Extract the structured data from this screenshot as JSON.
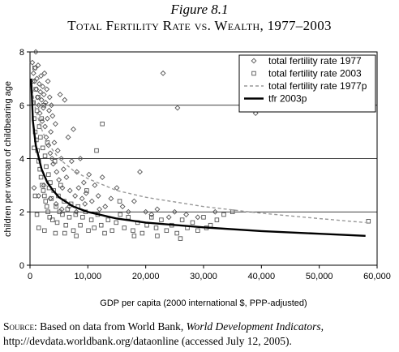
{
  "figure": {
    "label": "Figure 8.1",
    "title": "Total Fertility Rate vs. Wealth, 1977–2003"
  },
  "source": {
    "prefix": "Source:",
    "text1": " Based on data from World Bank, ",
    "italic": "World Development Indicators,",
    "text2": " http://devdata.worldbank.org/dataonline (accessed July 12, 2005)."
  },
  "chart_data": {
    "type": "scatter",
    "xlabel": "GDP per capita (2000 international $, PPP-adjusted)",
    "ylabel": "children per woman of childbearing age",
    "xlim": [
      0,
      60000
    ],
    "ylim": [
      0,
      8
    ],
    "xticks": [
      0,
      10000,
      20000,
      30000,
      40000,
      50000,
      60000
    ],
    "xtick_labels": [
      "0",
      "10,000",
      "20,000",
      "30,000",
      "40,000",
      "50,000",
      "60,000"
    ],
    "yticks": [
      0,
      2,
      4,
      6,
      8
    ],
    "ytick_labels": [
      "0",
      "2",
      "4",
      "6",
      "8"
    ],
    "grid": "horizontal",
    "legend_position": "top-right",
    "series": [
      {
        "name": "total fertility rate 1977",
        "kind": "scatter",
        "marker": "diamond",
        "color": "#555555",
        "points": [
          [
            400,
            7.6
          ],
          [
            600,
            7.2
          ],
          [
            800,
            6.9
          ],
          [
            900,
            7.4
          ],
          [
            1000,
            8.0
          ],
          [
            1100,
            6.6
          ],
          [
            1200,
            7.0
          ],
          [
            1300,
            6.3
          ],
          [
            1400,
            7.5
          ],
          [
            1500,
            6.0
          ],
          [
            1600,
            6.8
          ],
          [
            1700,
            5.7
          ],
          [
            1800,
            6.5
          ],
          [
            1900,
            7.1
          ],
          [
            2000,
            6.2
          ],
          [
            2100,
            5.4
          ],
          [
            2200,
            6.7
          ],
          [
            2300,
            5.9
          ],
          [
            2400,
            6.4
          ],
          [
            2500,
            7.2
          ],
          [
            2600,
            5.2
          ],
          [
            2700,
            6.1
          ],
          [
            2800,
            4.8
          ],
          [
            2900,
            6.6
          ],
          [
            3000,
            5.5
          ],
          [
            3100,
            6.9
          ],
          [
            3200,
            4.5
          ],
          [
            3300,
            5.8
          ],
          [
            3400,
            6.3
          ],
          [
            3500,
            4.2
          ],
          [
            3600,
            5.0
          ],
          [
            3700,
            6.0
          ],
          [
            3800,
            4.0
          ],
          [
            3900,
            5.6
          ],
          [
            4000,
            3.8
          ],
          [
            4200,
            4.6
          ],
          [
            4400,
            5.3
          ],
          [
            4600,
            3.5
          ],
          [
            4800,
            4.3
          ],
          [
            5000,
            3.2
          ],
          [
            5200,
            6.4
          ],
          [
            5400,
            4.0
          ],
          [
            5600,
            2.9
          ],
          [
            5800,
            3.6
          ],
          [
            6000,
            6.2
          ],
          [
            6300,
            3.3
          ],
          [
            6600,
            4.8
          ],
          [
            6900,
            2.8
          ],
          [
            7200,
            3.9
          ],
          [
            7500,
            5.1
          ],
          [
            7800,
            2.6
          ],
          [
            8100,
            3.5
          ],
          [
            8400,
            2.9
          ],
          [
            8700,
            4.0
          ],
          [
            9000,
            2.5
          ],
          [
            9300,
            3.1
          ],
          [
            9700,
            2.7
          ],
          [
            10200,
            3.4
          ],
          [
            10700,
            2.4
          ],
          [
            11200,
            3.0
          ],
          [
            11800,
            2.6
          ],
          [
            12500,
            3.3
          ],
          [
            13000,
            2.2
          ],
          [
            14000,
            2.5
          ],
          [
            15000,
            2.9
          ],
          [
            16000,
            2.2
          ],
          [
            17000,
            2.0
          ],
          [
            18000,
            2.4
          ],
          [
            19000,
            3.5
          ],
          [
            20000,
            2.0
          ],
          [
            21000,
            1.9
          ],
          [
            22000,
            2.1
          ],
          [
            23000,
            7.2
          ],
          [
            24000,
            1.8
          ],
          [
            25000,
            2.0
          ],
          [
            25500,
            5.9
          ],
          [
            27000,
            1.9
          ],
          [
            29000,
            1.8
          ],
          [
            32000,
            2.0
          ],
          [
            39000,
            5.7
          ],
          [
            700,
            2.9
          ],
          [
            1500,
            2.6
          ],
          [
            2400,
            3.0
          ],
          [
            3500,
            2.5
          ],
          [
            4500,
            2.3
          ],
          [
            5500,
            2.1
          ],
          [
            6800,
            2.2
          ],
          [
            8000,
            2.0
          ],
          [
            9500,
            2.3
          ],
          [
            12000,
            2.1
          ]
        ]
      },
      {
        "name": "total fertility rate 2003",
        "kind": "scatter",
        "marker": "square",
        "color": "#555555",
        "points": [
          [
            500,
            6.9
          ],
          [
            600,
            6.1
          ],
          [
            700,
            5.5
          ],
          [
            800,
            7.4
          ],
          [
            900,
            5.0
          ],
          [
            1000,
            6.6
          ],
          [
            1100,
            4.7
          ],
          [
            1200,
            5.8
          ],
          [
            1300,
            4.3
          ],
          [
            1400,
            6.3
          ],
          [
            1500,
            3.9
          ],
          [
            1600,
            5.2
          ],
          [
            1700,
            3.6
          ],
          [
            1800,
            4.8
          ],
          [
            1900,
            3.3
          ],
          [
            2000,
            5.5
          ],
          [
            2100,
            3.0
          ],
          [
            2200,
            4.4
          ],
          [
            2300,
            2.8
          ],
          [
            2400,
            6.0
          ],
          [
            2500,
            2.6
          ],
          [
            2600,
            4.1
          ],
          [
            2700,
            2.4
          ],
          [
            2800,
            3.7
          ],
          [
            2900,
            2.2
          ],
          [
            3000,
            4.6
          ],
          [
            3100,
            2.0
          ],
          [
            3200,
            3.4
          ],
          [
            3300,
            2.9
          ],
          [
            3400,
            1.8
          ],
          [
            3500,
            3.1
          ],
          [
            3700,
            2.5
          ],
          [
            3900,
            1.7
          ],
          [
            4100,
            2.8
          ],
          [
            4300,
            3.9
          ],
          [
            4500,
            2.2
          ],
          [
            4700,
            1.6
          ],
          [
            4900,
            2.6
          ],
          [
            5100,
            2.0
          ],
          [
            5300,
            3.0
          ],
          [
            5600,
            1.9
          ],
          [
            5900,
            2.4
          ],
          [
            6200,
            1.5
          ],
          [
            6500,
            2.1
          ],
          [
            6800,
            1.8
          ],
          [
            7100,
            2.3
          ],
          [
            7500,
            1.3
          ],
          [
            7900,
            1.9
          ],
          [
            8300,
            2.2
          ],
          [
            8700,
            1.5
          ],
          [
            9100,
            1.8
          ],
          [
            9600,
            2.0
          ],
          [
            10100,
            1.3
          ],
          [
            10600,
            1.7
          ],
          [
            11100,
            1.4
          ],
          [
            11700,
            1.9
          ],
          [
            12300,
            1.5
          ],
          [
            12900,
            1.2
          ],
          [
            13500,
            1.7
          ],
          [
            14200,
            1.3
          ],
          [
            14900,
            1.6
          ],
          [
            15600,
            1.9
          ],
          [
            16300,
            1.4
          ],
          [
            17000,
            1.8
          ],
          [
            17800,
            1.3
          ],
          [
            18600,
            1.6
          ],
          [
            19400,
            1.2
          ],
          [
            20200,
            1.5
          ],
          [
            21000,
            1.8
          ],
          [
            21800,
            1.4
          ],
          [
            22700,
            1.7
          ],
          [
            23600,
            1.3
          ],
          [
            24500,
            1.5
          ],
          [
            25400,
            1.2
          ],
          [
            26300,
            1.7
          ],
          [
            27200,
            1.4
          ],
          [
            28100,
            1.6
          ],
          [
            29000,
            1.3
          ],
          [
            30000,
            1.8
          ],
          [
            31200,
            1.5
          ],
          [
            32300,
            1.7
          ],
          [
            33500,
            1.9
          ],
          [
            35000,
            2.0
          ],
          [
            26000,
            1.0
          ],
          [
            58500,
            1.65
          ],
          [
            9800,
            2.8
          ],
          [
            11500,
            4.3
          ],
          [
            12500,
            5.3
          ],
          [
            4400,
            1.2
          ],
          [
            2500,
            1.3
          ],
          [
            1500,
            1.4
          ],
          [
            700,
            4.4
          ],
          [
            900,
            2.6
          ],
          [
            1200,
            1.9
          ],
          [
            6000,
            1.2
          ],
          [
            8000,
            1.1
          ],
          [
            15500,
            2.4
          ],
          [
            18000,
            1.1
          ],
          [
            22000,
            1.1
          ],
          [
            30500,
            1.4
          ]
        ]
      },
      {
        "name": "total fertility rate 1977p",
        "kind": "line",
        "style": "dashed",
        "color": "#999999",
        "x": [
          200,
          500,
          1000,
          2000,
          3000,
          4000,
          5000,
          7500,
          10000,
          15000,
          20000,
          30000,
          40000,
          50000,
          58000
        ],
        "y": [
          7.0,
          6.4,
          5.8,
          5.1,
          4.6,
          4.3,
          4.0,
          3.55,
          3.25,
          2.8,
          2.55,
          2.2,
          1.95,
          1.75,
          1.6
        ]
      },
      {
        "name": "tfr 2003p",
        "kind": "line",
        "style": "solid",
        "color": "#000000",
        "x": [
          200,
          500,
          1000,
          2000,
          3000,
          4000,
          5000,
          7500,
          10000,
          15000,
          20000,
          30000,
          40000,
          50000,
          58000
        ],
        "y": [
          7.0,
          5.4,
          4.5,
          3.6,
          3.1,
          2.8,
          2.55,
          2.2,
          2.0,
          1.75,
          1.6,
          1.42,
          1.28,
          1.18,
          1.1
        ]
      }
    ]
  }
}
